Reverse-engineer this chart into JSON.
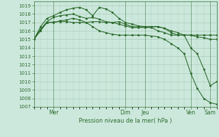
{
  "title": "Pression niveau de la mer( hPa )",
  "background_color": "#cce8dc",
  "grid_color": "#aaccbb",
  "line_color": "#2d6b2d",
  "ylim": [
    1007,
    1019.5
  ],
  "yticks": [
    1007,
    1008,
    1009,
    1010,
    1011,
    1012,
    1013,
    1014,
    1015,
    1016,
    1017,
    1018,
    1019
  ],
  "series": [
    {
      "x": [
        0,
        1,
        2,
        3,
        4,
        5,
        6,
        7,
        8,
        9,
        10,
        11,
        12,
        13,
        14,
        15,
        16,
        17,
        18,
        19,
        20,
        21,
        22,
        23,
        24,
        25,
        26,
        27,
        28
      ],
      "y": [
        1015.0,
        1016.1,
        1017.0,
        1017.05,
        1017.1,
        1017.1,
        1017.0,
        1017.0,
        1017.0,
        1017.1,
        1017.1,
        1017.0,
        1017.0,
        1017.1,
        1016.8,
        1016.5,
        1016.5,
        1016.5,
        1016.5,
        1016.5,
        1016.3,
        1016.0,
        1015.8,
        1015.5,
        1015.5,
        1015.3,
        1015.2,
        1015.0,
        1015.0
      ]
    },
    {
      "x": [
        0,
        1,
        2,
        3,
        4,
        5,
        6,
        7,
        8,
        9,
        10,
        11,
        12,
        13,
        14,
        15,
        16,
        17,
        18,
        19,
        20,
        21,
        22,
        23,
        24,
        25,
        26,
        27,
        28
      ],
      "y": [
        1015.0,
        1016.2,
        1017.1,
        1017.6,
        1017.8,
        1017.9,
        1018.0,
        1017.7,
        1017.5,
        1017.6,
        1017.4,
        1017.1,
        1017.0,
        1016.8,
        1016.6,
        1016.4,
        1016.4,
        1016.4,
        1016.4,
        1016.0,
        1015.8,
        1015.5,
        1015.5,
        1015.5,
        1015.5,
        1015.5,
        1015.5,
        1015.5,
        1015.5
      ]
    },
    {
      "x": [
        0,
        1,
        2,
        3,
        4,
        5,
        6,
        7,
        8,
        9,
        10,
        11,
        12,
        13,
        14,
        15,
        16,
        17,
        18,
        19,
        20,
        21,
        22,
        23,
        24,
        25,
        26,
        27,
        28
      ],
      "y": [
        1015.0,
        1016.5,
        1017.5,
        1017.8,
        1018.2,
        1018.5,
        1018.7,
        1018.8,
        1018.5,
        1017.8,
        1018.8,
        1018.6,
        1018.2,
        1017.5,
        1017.0,
        1016.8,
        1016.6,
        1016.5,
        1016.5,
        1016.5,
        1016.3,
        1015.8,
        1015.5,
        1015.5,
        1014.0,
        1013.3,
        1011.5,
        1009.5,
        1010.0
      ]
    },
    {
      "x": [
        0,
        1,
        2,
        3,
        4,
        5,
        6,
        7,
        8,
        9,
        10,
        11,
        12,
        13,
        14,
        15,
        16,
        17,
        18,
        19,
        20,
        21,
        22,
        23,
        24,
        25,
        26,
        27,
        28
      ],
      "y": [
        1015.0,
        1016.0,
        1017.0,
        1017.0,
        1017.2,
        1017.3,
        1017.5,
        1017.3,
        1017.0,
        1016.5,
        1016.0,
        1015.8,
        1015.6,
        1015.5,
        1015.5,
        1015.5,
        1015.5,
        1015.5,
        1015.4,
        1015.3,
        1015.0,
        1014.5,
        1014.0,
        1013.3,
        1011.0,
        1009.2,
        1008.0,
        1007.5,
        1007.3
      ]
    }
  ],
  "day_vlines": [
    3,
    14,
    17,
    24,
    27
  ],
  "xtick_positions": [
    3,
    14,
    17,
    24,
    27
  ],
  "xtick_labels": [
    "Mer",
    "Dim",
    "Jeu",
    "Ven",
    "Sam"
  ]
}
